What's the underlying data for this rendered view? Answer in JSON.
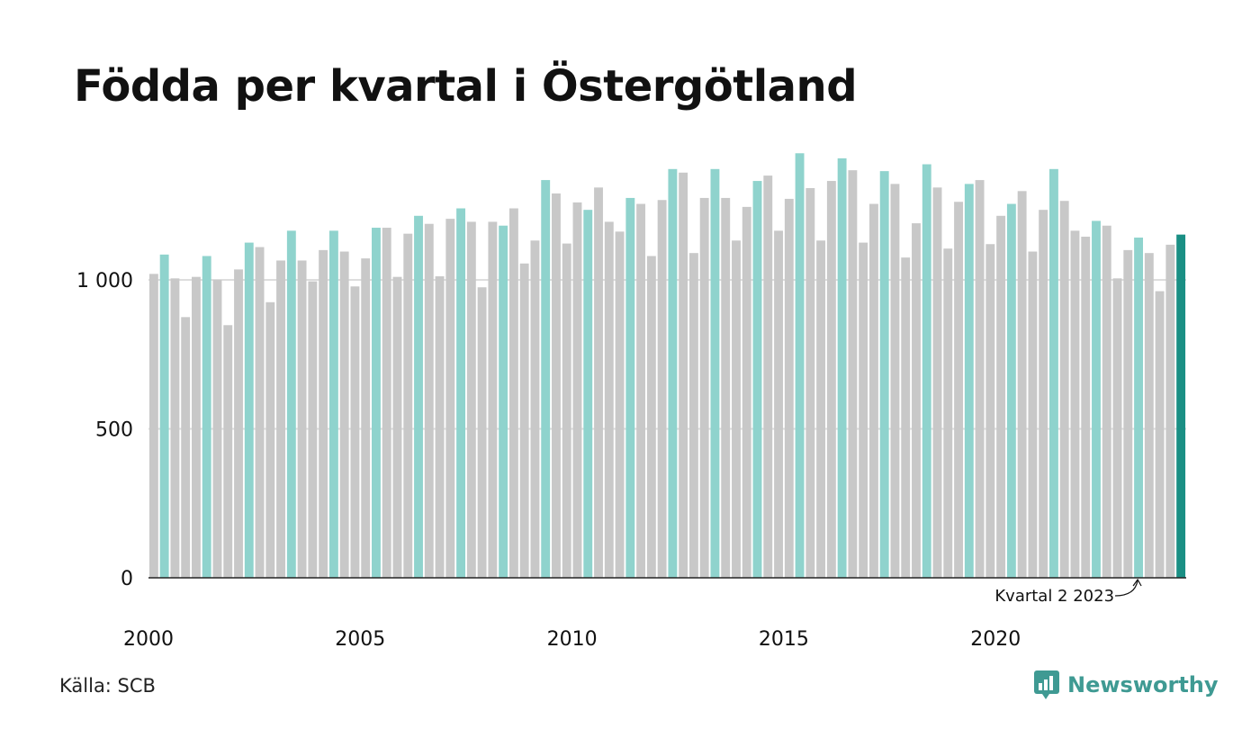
{
  "title": "Födda per kvartal i Östergötland",
  "source": "Källa: SCB",
  "brand": "Newsworthy",
  "colors": {
    "q2": "#8fd3cd",
    "other": "#c8c8c8",
    "highlight": "#1a8f84",
    "grid": "#dddddd",
    "axis": "#222222",
    "brand": "#3f9a93"
  },
  "chart_data": {
    "type": "bar",
    "title": "Födda per kvartal i Östergötland",
    "xlabel": "",
    "ylabel": "",
    "ylim": [
      0,
      1450
    ],
    "yticks": [
      {
        "value": 0,
        "label": "0"
      },
      {
        "value": 500,
        "label": "500"
      },
      {
        "value": 1000,
        "label": "1 000"
      }
    ],
    "xticks": [
      {
        "year": 2000,
        "label": "2000"
      },
      {
        "year": 2005,
        "label": "2005"
      },
      {
        "year": 2010,
        "label": "2010"
      },
      {
        "year": 2015,
        "label": "2015"
      },
      {
        "year": 2020,
        "label": "2020"
      }
    ],
    "start_year": 2000,
    "highlight_quarter": 2,
    "grid": "horizontal",
    "annotation": {
      "text": "Kvartal 2 2023",
      "year": 2023,
      "quarter": 2
    },
    "values": [
      1020,
      1085,
      1005,
      875,
      1010,
      1080,
      1000,
      848,
      1035,
      1125,
      1110,
      925,
      1065,
      1165,
      1065,
      995,
      1100,
      1165,
      1095,
      978,
      1072,
      1175,
      1175,
      1010,
      1155,
      1215,
      1188,
      1012,
      1205,
      1240,
      1195,
      975,
      1195,
      1182,
      1240,
      1055,
      1132,
      1335,
      1290,
      1122,
      1260,
      1235,
      1310,
      1195,
      1162,
      1275,
      1255,
      1080,
      1268,
      1372,
      1360,
      1090,
      1275,
      1372,
      1275,
      1132,
      1245,
      1332,
      1350,
      1165,
      1272,
      1425,
      1308,
      1132,
      1332,
      1408,
      1368,
      1125,
      1255,
      1365,
      1322,
      1075,
      1190,
      1388,
      1310,
      1105,
      1262,
      1322,
      1335,
      1120,
      1215,
      1255,
      1298,
      1095,
      1235,
      1372,
      1265,
      1165,
      1145,
      1198,
      1182,
      1005,
      1100,
      1142,
      1090,
      962,
      1118,
      1152
    ]
  }
}
